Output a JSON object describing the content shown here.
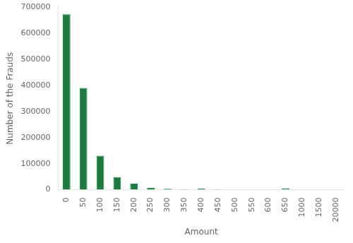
{
  "chart_data": {
    "type": "bar",
    "categories": [
      "0",
      "50",
      "100",
      "150",
      "200",
      "250",
      "300",
      "350",
      "400",
      "450",
      "500",
      "550",
      "600",
      "650",
      "1000",
      "1500",
      "20000"
    ],
    "values": [
      672000,
      390000,
      130000,
      48000,
      23000,
      8000,
      3500,
      1500,
      5000,
      1500,
      500,
      500,
      500,
      5500,
      500,
      500,
      500
    ],
    "color": "#1a7d3e",
    "xlabel": "Amount",
    "ylabel": "Number of the Frauds",
    "ylim": [
      0,
      700000
    ],
    "yticks": [
      0,
      100000,
      200000,
      300000,
      400000,
      500000,
      600000,
      700000
    ],
    "grid": false
  }
}
